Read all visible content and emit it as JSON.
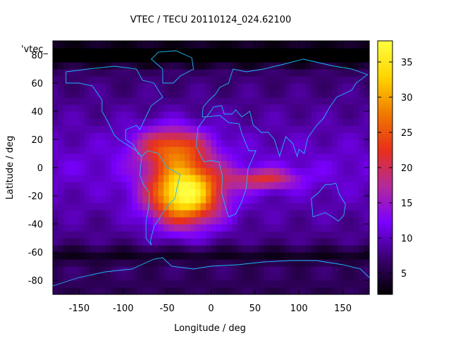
{
  "chart_data": {
    "type": "heatmap",
    "title": "VTEC / TECU 20110124_024.62100",
    "key_label": "'vtec_",
    "xlabel": "Longitude / deg",
    "ylabel": "Latitude / deg",
    "xlim": [
      -180,
      180
    ],
    "ylim": [
      -90,
      90
    ],
    "xticks": [
      -150,
      -100,
      -50,
      0,
      50,
      100,
      150
    ],
    "yticks": [
      -80,
      -60,
      -40,
      -20,
      0,
      20,
      40,
      60,
      80
    ],
    "colorbar": {
      "min": 2,
      "max": 38,
      "ticks": [
        5,
        10,
        15,
        20,
        25,
        30,
        35
      ],
      "stops": [
        "#000000",
        "#3a0070",
        "#7a00ff",
        "#b32a9a",
        "#e8301a",
        "#f07a00",
        "#ffd400",
        "#ffff40"
      ]
    },
    "features": [
      {
        "name": "peak",
        "lon": -30,
        "lat": -18,
        "value": 38
      },
      {
        "name": "secondary-peak",
        "lon": -45,
        "lat": 15,
        "value": 26
      },
      {
        "name": "african-tongue",
        "lon": 60,
        "lat": -8,
        "value": 22
      },
      {
        "name": "background-mid",
        "lon": 120,
        "lat": 0,
        "value": 11
      },
      {
        "name": "north-polar-low",
        "lon": 0,
        "lat": 80,
        "value": 3
      },
      {
        "name": "southern-ring-low",
        "lon": 60,
        "lat": -62,
        "value": 4
      }
    ]
  }
}
